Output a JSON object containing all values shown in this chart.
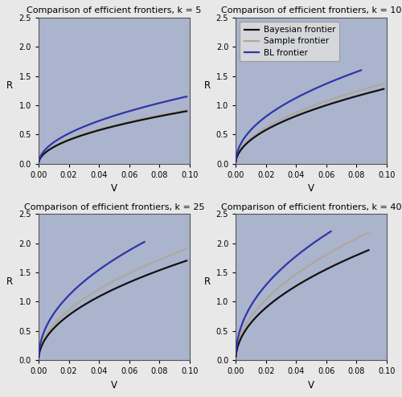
{
  "titles": [
    "Comparison of efficient frontiers, k = 5",
    "Comparison of efficient frontiers, k = 10",
    "Comparison of efficient frontiers, k = 25",
    "Comparison of efficient frontiers, k = 40"
  ],
  "bg_color": "#aab4cc",
  "outer_bg": "#e8e8e8",
  "bayesian_color": "#111111",
  "sample_color": "#b0a898",
  "bl_color": "#3333aa",
  "xlabel": "V",
  "ylabel": "R",
  "xlim": [
    0.0,
    0.1
  ],
  "ylim": [
    0.0,
    2.5
  ],
  "xticks": [
    0.0,
    0.02,
    0.04,
    0.06,
    0.08,
    0.1
  ],
  "yticks": [
    0.0,
    0.5,
    1.0,
    1.5,
    2.0,
    2.5
  ],
  "legend_labels": [
    "Bayesian frontier",
    "Sample frontier",
    "BL frontier"
  ],
  "line_width": 1.6,
  "configs": {
    "5": {
      "bayesian": [
        0.0001,
        0.098,
        0.9,
        0.5
      ],
      "sample": [
        0.0001,
        0.098,
        0.92,
        0.5
      ],
      "bl": [
        0.0001,
        0.098,
        1.15,
        0.5
      ]
    },
    "10": {
      "bayesian": [
        0.0001,
        0.098,
        1.28,
        0.5
      ],
      "sample": [
        0.0001,
        0.098,
        1.37,
        0.5
      ],
      "bl": [
        0.0001,
        0.083,
        1.6,
        0.48
      ]
    },
    "25": {
      "bayesian": [
        0.0001,
        0.098,
        1.7,
        0.5
      ],
      "sample": [
        0.0001,
        0.098,
        1.9,
        0.5
      ],
      "bl": [
        0.0001,
        0.07,
        2.02,
        0.48
      ]
    },
    "40": {
      "bayesian": [
        0.0001,
        0.088,
        1.88,
        0.5
      ],
      "sample": [
        0.0001,
        0.088,
        2.18,
        0.5
      ],
      "bl": [
        0.0001,
        0.063,
        2.2,
        0.47
      ]
    }
  }
}
